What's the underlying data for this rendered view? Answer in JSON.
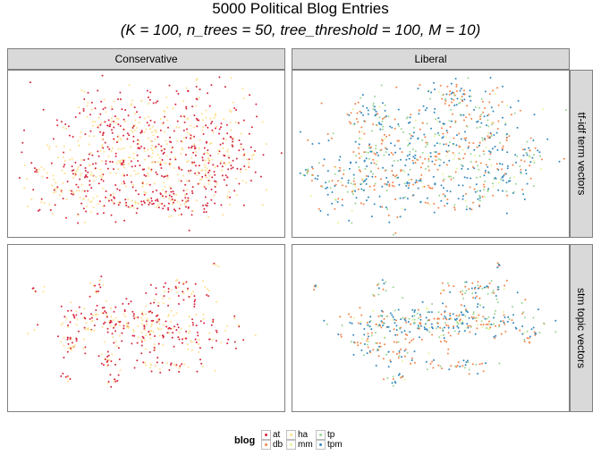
{
  "title": "5000 Political Blog Entries",
  "subtitle": "(K = 100, n_trees = 50, tree_threshold = 100, M = 10)",
  "columns": [
    "Conservative",
    "Liberal"
  ],
  "rows": [
    "tf-idf term vectors",
    "stm topic vectors"
  ],
  "legend": {
    "title": "blog",
    "items": [
      {
        "label": "at",
        "color": "#d7263d"
      },
      {
        "label": "db",
        "color": "#f2844a"
      },
      {
        "label": "ha",
        "color": "#fee08b"
      },
      {
        "label": "mm",
        "color": "#e6f598"
      },
      {
        "label": "tp",
        "color": "#99d594"
      },
      {
        "label": "tpm",
        "color": "#3288bd"
      }
    ]
  },
  "chart_data": {
    "type": "scatter",
    "title": "5000 Political Blog Entries",
    "subtitle": "(K = 100, n_trees = 50, tree_threshold = 100, M = 10)",
    "xlabel": "",
    "ylabel": "",
    "facet_columns": [
      "Conservative",
      "Liberal"
    ],
    "facet_rows": [
      "tf-idf term vectors",
      "stm topic vectors"
    ],
    "grid": false,
    "legend_position": "bottom",
    "series": [
      {
        "name": "at",
        "group": "Conservative",
        "color": "#d7263d"
      },
      {
        "name": "db",
        "group": "Liberal",
        "color": "#f2844a"
      },
      {
        "name": "ha",
        "group": "Conservative",
        "color": "#fee08b"
      },
      {
        "name": "mm",
        "group": "Liberal",
        "color": "#e6f598"
      },
      {
        "name": "tp",
        "group": "Liberal",
        "color": "#99d594"
      },
      {
        "name": "tpm",
        "group": "Liberal",
        "color": "#3288bd"
      }
    ]
  }
}
